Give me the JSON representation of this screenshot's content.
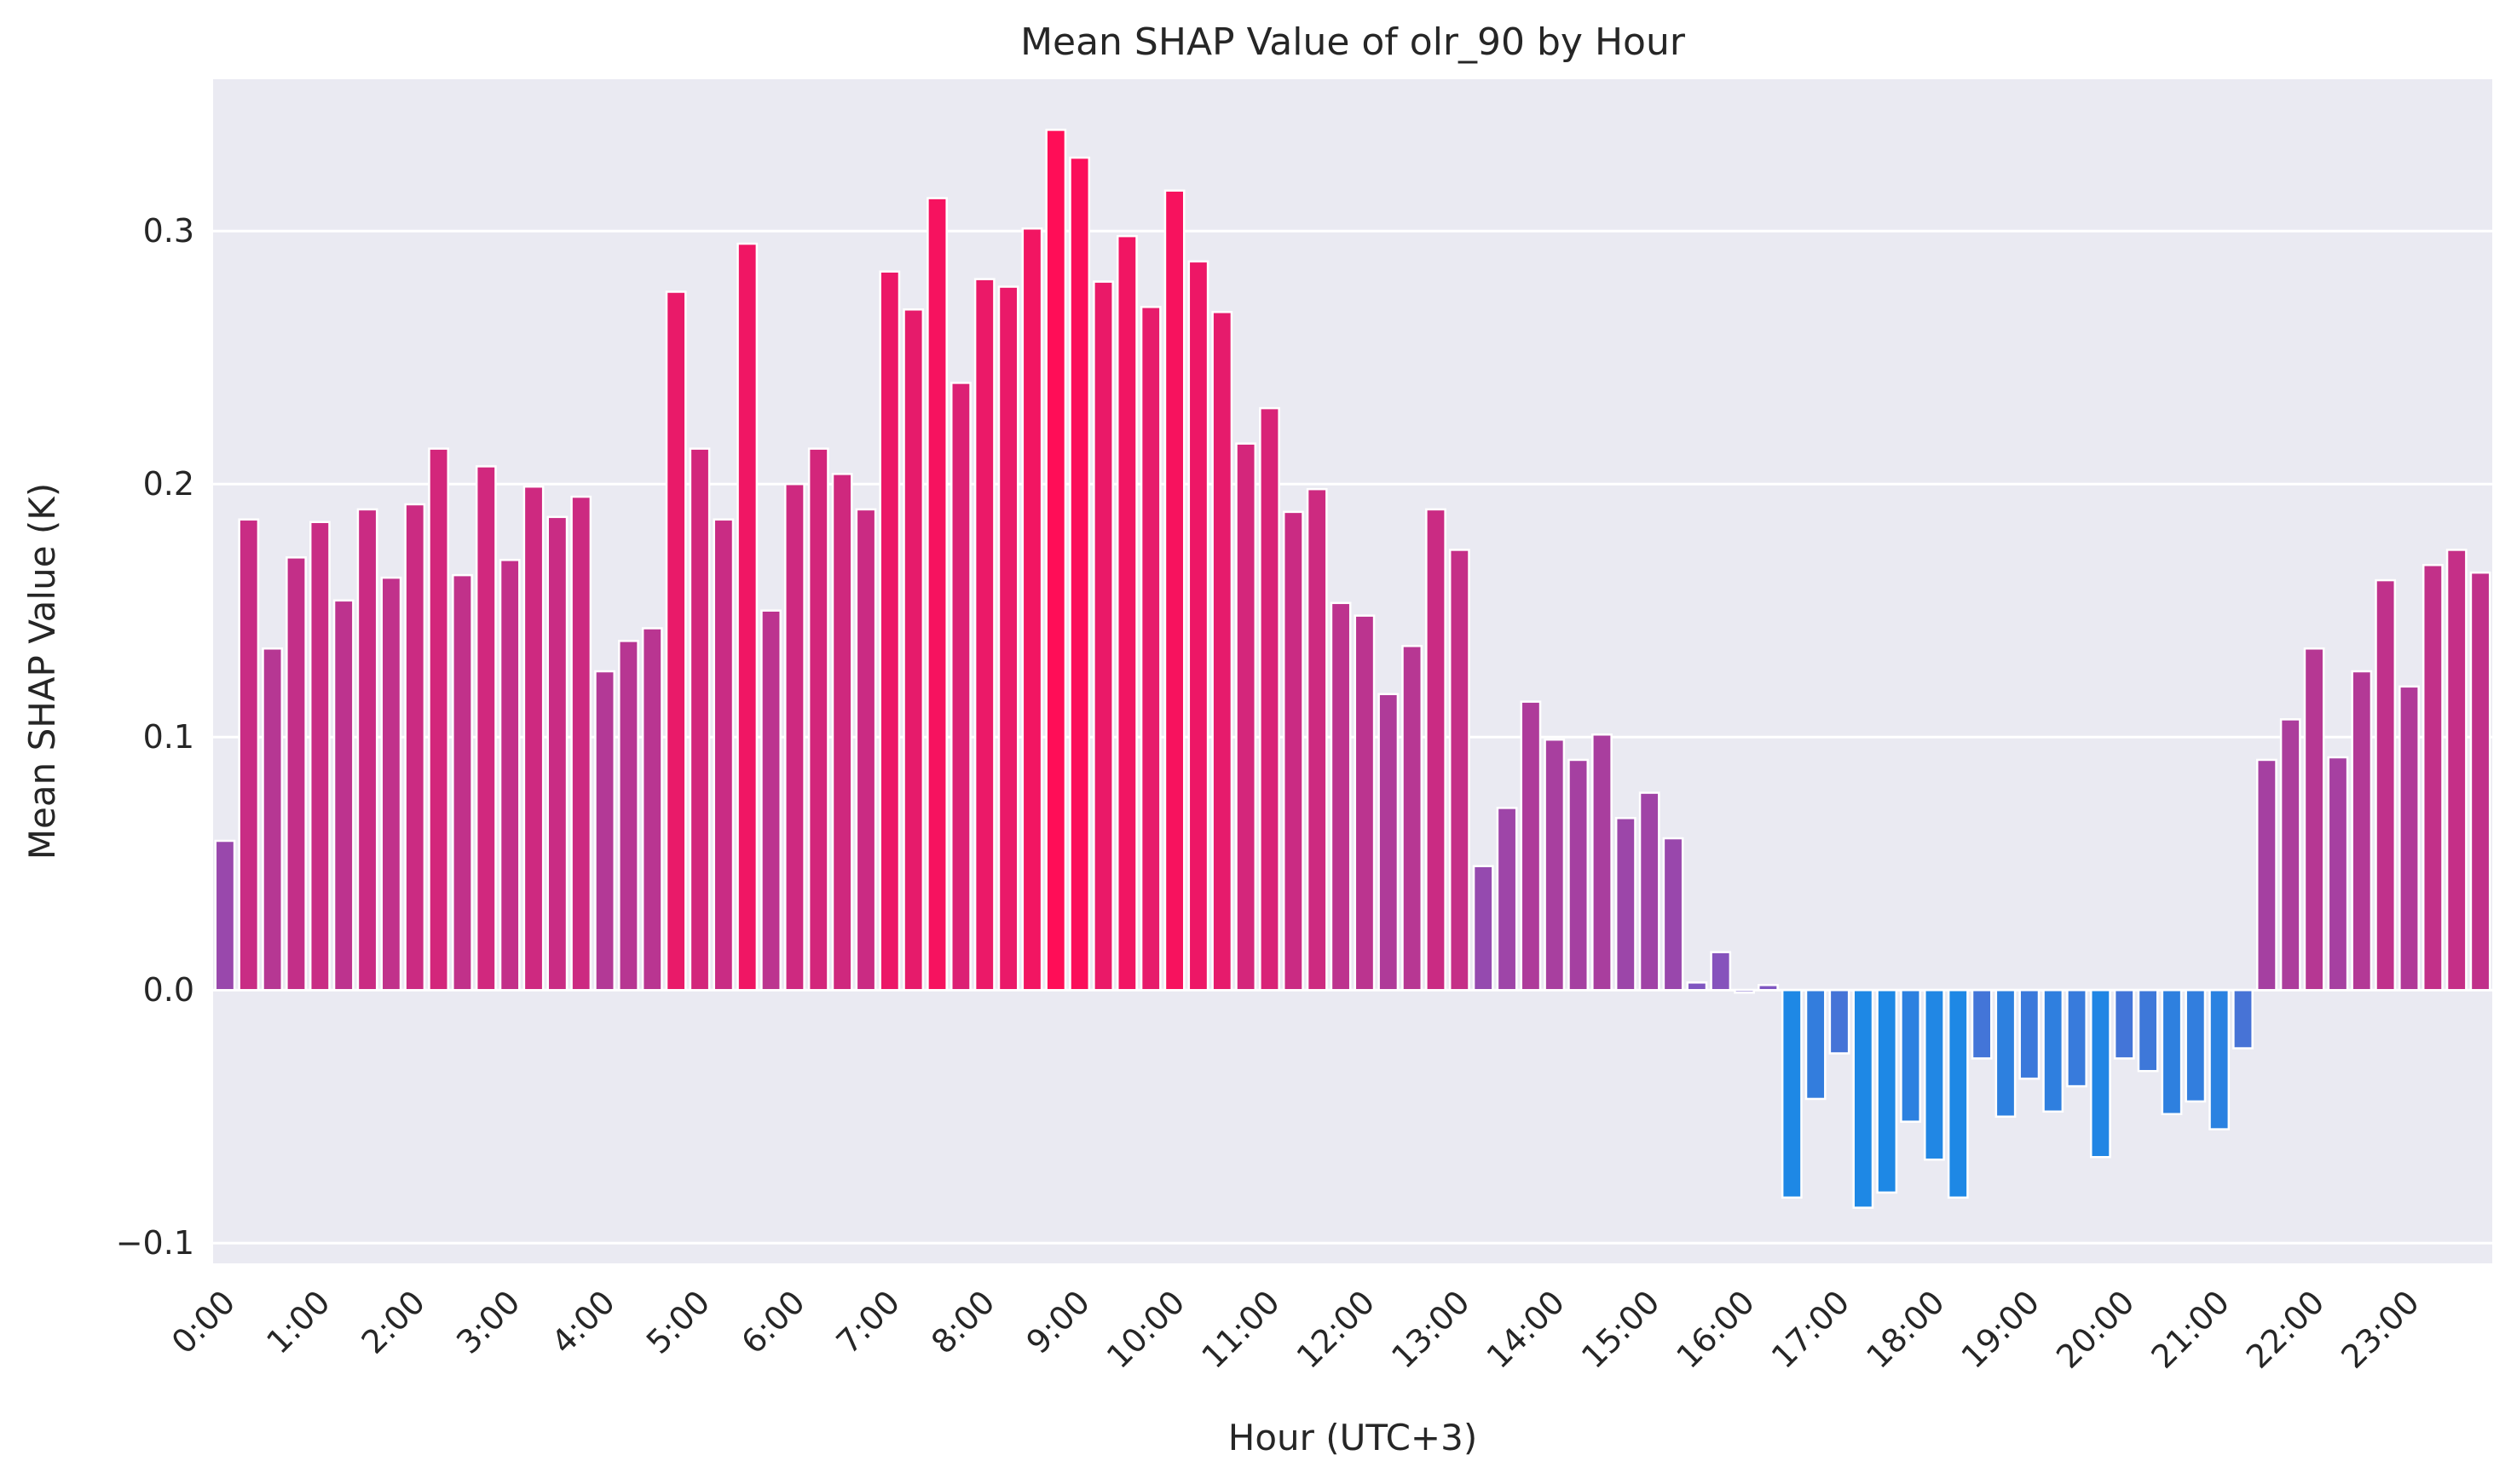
{
  "chart_data": {
    "type": "bar",
    "title": "Mean SHAP Value of olr_90 by Hour",
    "xlabel": "Hour (UTC+3)",
    "ylabel": "Mean SHAP Value (K)",
    "ylim": [
      -0.108,
      0.36
    ],
    "yticks": [
      -0.1,
      0.0,
      0.1,
      0.2,
      0.3
    ],
    "ytick_labels": [
      "−0.1",
      "0.0",
      "0.1",
      "0.2",
      "0.3"
    ],
    "xtick_labels": [
      "0:00",
      "1:00",
      "2:00",
      "3:00",
      "4:00",
      "5:00",
      "6:00",
      "7:00",
      "8:00",
      "9:00",
      "10:00",
      "11:00",
      "12:00",
      "13:00",
      "14:00",
      "15:00",
      "16:00",
      "17:00",
      "18:00",
      "19:00",
      "20:00",
      "21:00",
      "22:00",
      "23:00"
    ],
    "bars_per_hour": 4,
    "grid": true,
    "background": "#eaeaf2",
    "color_scale": {
      "negative": "#1e88e5",
      "mid": "#7e57c2",
      "positive": "#ff0d57"
    },
    "values": [
      0.059,
      0.186,
      0.135,
      0.171,
      0.185,
      0.154,
      0.19,
      0.163,
      0.192,
      0.214,
      0.164,
      0.207,
      0.17,
      0.199,
      0.187,
      0.195,
      0.126,
      0.138,
      0.143,
      0.276,
      0.214,
      0.186,
      0.295,
      0.15,
      0.2,
      0.214,
      0.204,
      0.19,
      0.284,
      0.269,
      0.313,
      0.24,
      0.281,
      0.278,
      0.301,
      0.34,
      0.329,
      0.28,
      0.298,
      0.27,
      0.316,
      0.288,
      0.268,
      0.216,
      0.23,
      0.189,
      0.198,
      0.153,
      0.148,
      0.117,
      0.136,
      0.19,
      0.174,
      0.049,
      0.072,
      0.114,
      0.099,
      0.091,
      0.101,
      0.068,
      0.078,
      0.06,
      0.003,
      0.015,
      -0.001,
      0.002,
      -0.082,
      -0.043,
      -0.025,
      -0.086,
      -0.08,
      -0.052,
      -0.067,
      -0.082,
      -0.027,
      -0.05,
      -0.035,
      -0.048,
      -0.038,
      -0.066,
      -0.027,
      -0.032,
      -0.049,
      -0.044,
      -0.055,
      -0.023,
      0.091,
      0.107,
      0.135,
      0.092,
      0.126,
      0.162,
      0.12,
      0.168,
      0.174,
      0.165
    ]
  }
}
